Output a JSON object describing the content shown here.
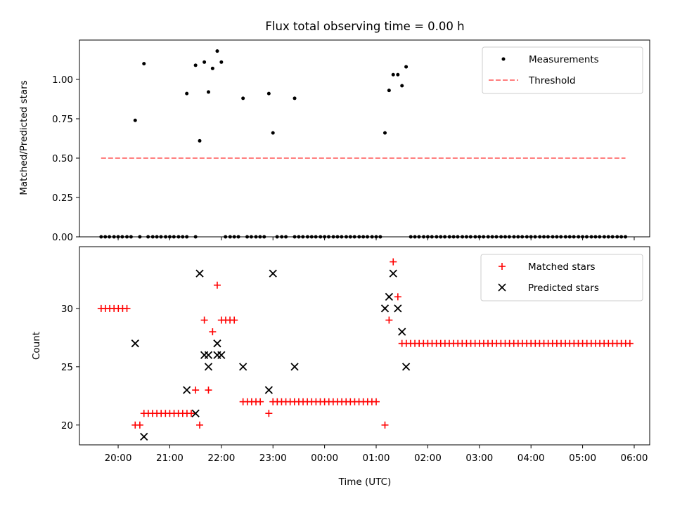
{
  "title": "Flux total observing time = 0.00 h",
  "colors": {
    "measurements": "#000000",
    "threshold": "#ff7f7f",
    "matched": "#ff0000",
    "predicted": "#000000"
  },
  "chart_data": [
    {
      "type": "scatter",
      "ylabel": "Matched/Predicted stars",
      "x_range_hours": [
        19.25,
        30.3
      ],
      "ylim": [
        0.0,
        1.25
      ],
      "yticks": [
        "0.00",
        "0.25",
        "0.50",
        "0.75",
        "1.00"
      ],
      "yticks_values": [
        0,
        0.25,
        0.5,
        0.75,
        1.0
      ],
      "legend": [
        "Measurements",
        "Threshold"
      ],
      "legend_loc": "upper right",
      "threshold": {
        "y": 0.5,
        "x_start": 19.67,
        "x_end": 29.83
      },
      "zero_x": [
        19.67,
        19.75,
        19.83,
        19.92,
        20.0,
        20.08,
        20.17,
        20.25,
        20.42,
        20.58,
        20.67,
        20.75,
        20.83,
        20.92,
        21.0,
        21.08,
        21.17,
        21.25,
        21.33,
        21.5,
        22.08,
        22.17,
        22.25,
        22.33,
        22.5,
        22.58,
        22.67,
        22.75,
        22.83,
        23.08,
        23.17,
        23.25,
        23.42,
        23.5,
        23.58,
        23.67,
        23.75,
        23.83,
        23.92,
        24.0,
        24.08,
        24.17,
        24.25,
        24.33,
        24.42,
        24.5,
        24.58,
        24.67,
        24.75,
        24.83,
        24.92,
        25.0,
        25.08,
        25.67,
        25.75,
        25.83,
        25.92,
        26.0,
        26.08,
        26.17,
        26.25,
        26.33,
        26.42,
        26.5,
        26.58,
        26.67,
        26.75,
        26.83,
        26.92,
        27.0,
        27.08,
        27.17,
        27.25,
        27.33,
        27.42,
        27.5,
        27.58,
        27.67,
        27.75,
        27.83,
        27.92,
        28.0,
        28.08,
        28.17,
        28.25,
        28.33,
        28.42,
        28.5,
        28.58,
        28.67,
        28.75,
        28.83,
        28.92,
        29.0,
        29.08,
        29.17,
        29.25,
        29.33,
        29.42,
        29.5,
        29.58,
        29.67,
        29.75,
        29.83
      ],
      "points": [
        {
          "x": 20.33,
          "y": 0.74
        },
        {
          "x": 20.5,
          "y": 1.1
        },
        {
          "x": 21.33,
          "y": 0.91
        },
        {
          "x": 21.5,
          "y": 1.09
        },
        {
          "x": 21.58,
          "y": 0.61
        },
        {
          "x": 21.67,
          "y": 1.11
        },
        {
          "x": 21.75,
          "y": 0.92
        },
        {
          "x": 21.83,
          "y": 1.07
        },
        {
          "x": 21.92,
          "y": 1.18
        },
        {
          "x": 22.0,
          "y": 1.11
        },
        {
          "x": 22.42,
          "y": 0.88
        },
        {
          "x": 22.92,
          "y": 0.91
        },
        {
          "x": 23.0,
          "y": 0.66
        },
        {
          "x": 23.42,
          "y": 0.88
        },
        {
          "x": 25.17,
          "y": 0.66
        },
        {
          "x": 25.25,
          "y": 0.93
        },
        {
          "x": 25.33,
          "y": 1.03
        },
        {
          "x": 25.42,
          "y": 1.03
        },
        {
          "x": 25.5,
          "y": 0.96
        },
        {
          "x": 25.58,
          "y": 1.08
        }
      ]
    },
    {
      "type": "scatter",
      "xlabel": "Time (UTC)",
      "ylabel": "Count",
      "x_range_hours": [
        19.25,
        30.3
      ],
      "ylim": [
        18.3,
        35.3
      ],
      "yticks": [
        "20",
        "25",
        "30"
      ],
      "yticks_values": [
        20,
        25,
        30
      ],
      "xticks": [
        "20:00",
        "21:00",
        "22:00",
        "23:00",
        "00:00",
        "01:00",
        "02:00",
        "03:00",
        "04:00",
        "05:00",
        "06:00"
      ],
      "xticks_values": [
        20,
        21,
        22,
        23,
        24,
        25,
        26,
        27,
        28,
        29,
        30
      ],
      "legend": [
        "Matched stars",
        "Predicted stars"
      ],
      "legend_loc": "upper right",
      "matched_runs": [
        {
          "y": 30,
          "x_start": 19.67,
          "x_end": 20.25
        },
        {
          "y": 21,
          "x_start": 20.5,
          "x_end": 21.42
        },
        {
          "y": 29,
          "x_start": 22.0,
          "x_end": 22.33
        },
        {
          "y": 22,
          "x_start": 22.42,
          "x_end": 22.83
        },
        {
          "y": 22,
          "x_start": 23.0,
          "x_end": 25.08
        },
        {
          "y": 27,
          "x_start": 25.5,
          "x_end": 29.92
        }
      ],
      "matched_points": [
        {
          "x": 20.33,
          "y": 20
        },
        {
          "x": 20.42,
          "y": 20
        },
        {
          "x": 21.5,
          "y": 23
        },
        {
          "x": 21.58,
          "y": 20
        },
        {
          "x": 21.67,
          "y": 29
        },
        {
          "x": 21.75,
          "y": 23
        },
        {
          "x": 21.83,
          "y": 28
        },
        {
          "x": 21.92,
          "y": 32
        },
        {
          "x": 22.92,
          "y": 21
        },
        {
          "x": 25.17,
          "y": 20
        },
        {
          "x": 25.25,
          "y": 29
        },
        {
          "x": 25.33,
          "y": 34
        },
        {
          "x": 25.42,
          "y": 31
        }
      ],
      "predicted_points": [
        {
          "x": 20.33,
          "y": 27
        },
        {
          "x": 20.5,
          "y": 19
        },
        {
          "x": 21.33,
          "y": 23
        },
        {
          "x": 21.5,
          "y": 21
        },
        {
          "x": 21.58,
          "y": 33
        },
        {
          "x": 21.67,
          "y": 26
        },
        {
          "x": 21.75,
          "y": 25
        },
        {
          "x": 21.75,
          "y": 26
        },
        {
          "x": 21.92,
          "y": 27
        },
        {
          "x": 21.92,
          "y": 26
        },
        {
          "x": 22.0,
          "y": 26
        },
        {
          "x": 22.42,
          "y": 25
        },
        {
          "x": 22.92,
          "y": 23
        },
        {
          "x": 23.0,
          "y": 33
        },
        {
          "x": 23.42,
          "y": 25
        },
        {
          "x": 25.17,
          "y": 30
        },
        {
          "x": 25.25,
          "y": 31
        },
        {
          "x": 25.33,
          "y": 33
        },
        {
          "x": 25.42,
          "y": 30
        },
        {
          "x": 25.5,
          "y": 28
        },
        {
          "x": 25.58,
          "y": 25
        }
      ]
    }
  ]
}
